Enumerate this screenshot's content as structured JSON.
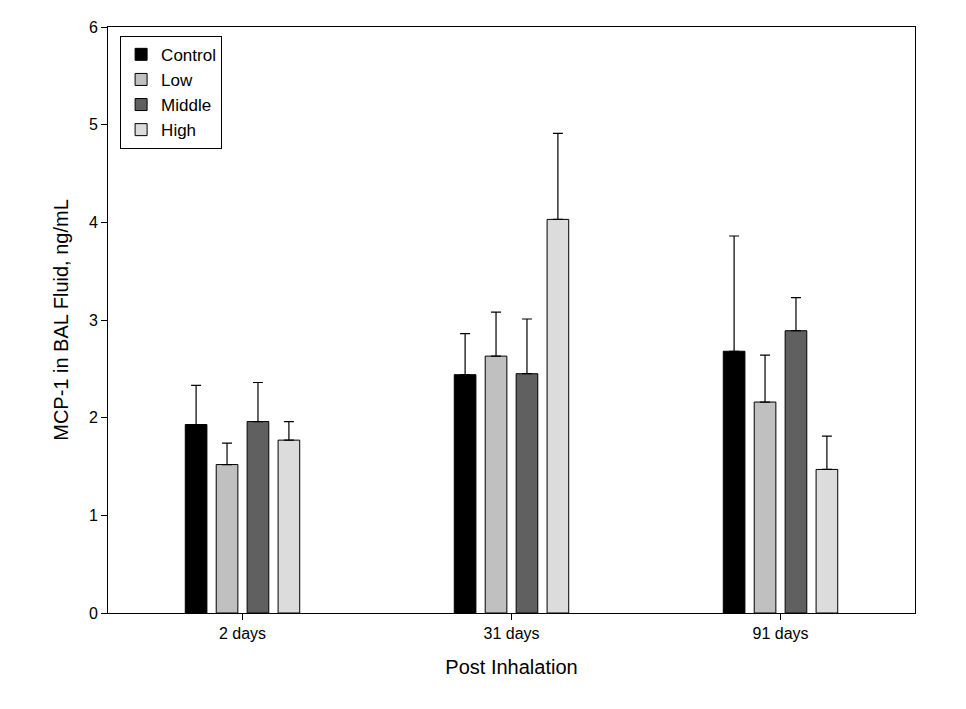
{
  "chart_data": {
    "type": "bar",
    "x_label": "Post Inhalation",
    "y_label": "MCP-1 in BAL Fluid, ng/mL",
    "categories": [
      "2 days",
      "31 days",
      "91 days"
    ],
    "series": [
      {
        "name": "Control",
        "color": "#000000",
        "values": [
          1.93,
          2.44,
          2.68
        ],
        "errors": [
          0.4,
          0.42,
          1.18
        ]
      },
      {
        "name": "Low",
        "color": "#c0c0c0",
        "values": [
          1.52,
          2.63,
          2.16
        ],
        "errors": [
          0.22,
          0.45,
          0.48
        ]
      },
      {
        "name": "Middle",
        "color": "#606060",
        "values": [
          1.96,
          2.45,
          2.89
        ],
        "errors": [
          0.4,
          0.56,
          0.34
        ]
      },
      {
        "name": "High",
        "color": "#dcdcdc",
        "values": [
          1.77,
          4.03,
          1.47
        ],
        "errors": [
          0.19,
          0.88,
          0.34
        ]
      }
    ],
    "ylim": [
      0,
      6
    ],
    "yticks": [
      0,
      1,
      2,
      3,
      4,
      5,
      6
    ],
    "grid": false,
    "legend": "top-left"
  }
}
